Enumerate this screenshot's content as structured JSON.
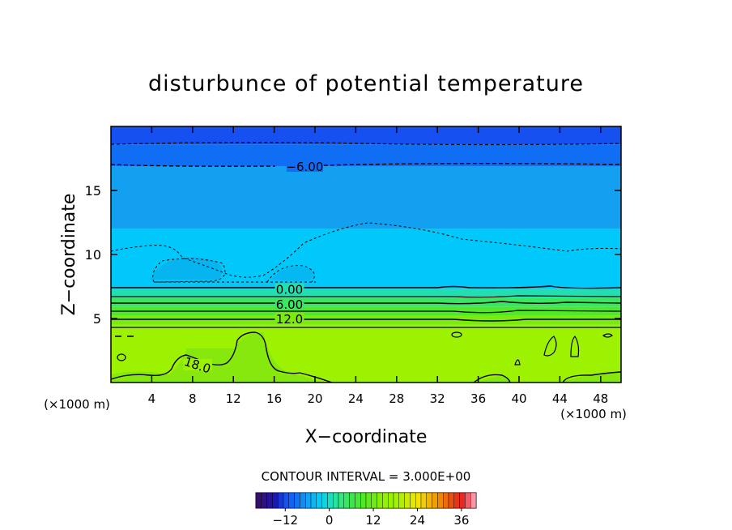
{
  "chart_data": {
    "type": "heatmap",
    "title": "disturbunce of potential temperature",
    "xlabel": "X−coordinate",
    "ylabel": "Z−coordinate",
    "x_unit_left": "(×1000 m)",
    "x_unit_right": "(×1000 m)",
    "xlim": [
      0,
      50
    ],
    "ylim": [
      0,
      20
    ],
    "x_ticks": [
      4,
      8,
      12,
      16,
      20,
      24,
      28,
      32,
      36,
      40,
      44,
      48
    ],
    "y_ticks": [
      5,
      10,
      15
    ],
    "contour_interval_text": "CONTOUR INTERVAL = 3.000E+00",
    "contour_labels": [
      {
        "text": "−6.00",
        "x": 19,
        "z": 16.9
      },
      {
        "text": "0.00",
        "x": 17.5,
        "z": 7.3
      },
      {
        "text": "6.00",
        "x": 17.5,
        "z": 6.15
      },
      {
        "text": "12.0",
        "x": 17.5,
        "z": 5.0
      },
      {
        "text": "18.0",
        "x": 8.5,
        "z": 1.4
      }
    ],
    "colorbar": {
      "min": -20,
      "max": 40,
      "ticks": [
        -12,
        0,
        12,
        24,
        36
      ]
    },
    "field_bands": [
      {
        "z0": 18.6,
        "z1": 20.0,
        "value": -12
      },
      {
        "z0": 16.9,
        "z1": 18.6,
        "value": -9
      },
      {
        "z0": 12.0,
        "z1": 16.9,
        "value": -6
      },
      {
        "z0": 7.3,
        "z1": 12.0,
        "value": -3
      },
      {
        "z0": 6.6,
        "z1": 7.3,
        "value": 1
      },
      {
        "z0": 5.9,
        "z1": 6.6,
        "value": 5
      },
      {
        "z0": 5.2,
        "z1": 5.9,
        "value": 9
      },
      {
        "z0": 4.5,
        "z1": 5.2,
        "value": 13
      },
      {
        "z0": 0.0,
        "z1": 4.5,
        "value": 18
      }
    ]
  }
}
